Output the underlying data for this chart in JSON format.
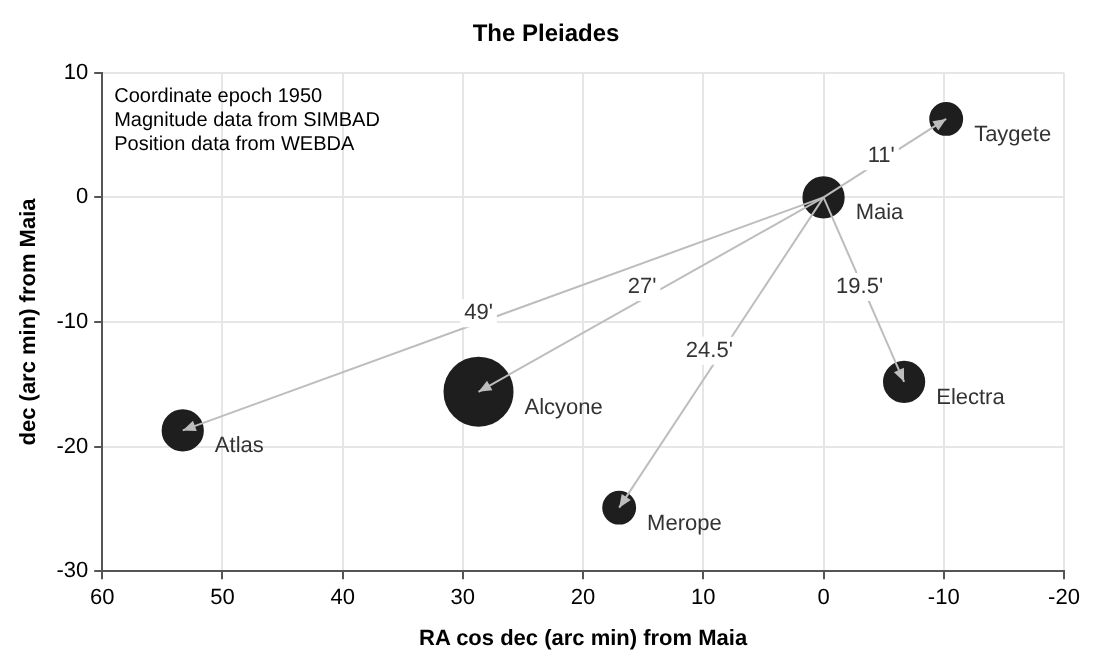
{
  "chart_data": {
    "type": "bubble",
    "title": "The Pleiades",
    "xlabel": "RA cos dec (arc min) from Maia",
    "ylabel": "dec (arc min) from Maia",
    "series": [
      {
        "name": "Maia",
        "color": "#1e1e1e",
        "x": [
          0
        ],
        "values": [
          0
        ],
        "sizes": [
          0.35
        ]
      },
      {
        "name": "Taygete",
        "color": "#1e1e1e",
        "x": [
          -10.2
        ],
        "values": [
          6.3
        ],
        "sizes": [
          0.22
        ]
      },
      {
        "name": "Alcyone",
        "color": "#1e1e1e",
        "x": [
          28.7
        ],
        "values": [
          -15.6
        ],
        "sizes": [
          1
        ]
      },
      {
        "name": "Atlas",
        "color": "#1e1e1e",
        "x": [
          53.3
        ],
        "values": [
          -18.7
        ],
        "sizes": [
          0.35
        ]
      },
      {
        "name": "Merope",
        "color": "#1e1e1e",
        "x": [
          17
        ],
        "values": [
          -24.9
        ],
        "sizes": [
          0.22
        ]
      },
      {
        "name": "Electra",
        "color": "#1e1e1e",
        "x": [
          -6.7
        ],
        "values": [
          -14.8
        ],
        "sizes": [
          0.35
        ]
      }
    ],
    "xlim": [
      60,
      -20
    ],
    "xticks": [
      60,
      50,
      40,
      30,
      20,
      10,
      0,
      -10,
      -20
    ],
    "ylim": [
      -30,
      10
    ],
    "yticks": [
      -30,
      -20,
      -10,
      0,
      10
    ],
    "grid": true,
    "legend": false,
    "annotations": [
      "Coordinate epoch 1950",
      "Magnitude data from SIMBAD",
      "Position data from WEBDA",
      {
        "text": "11'",
        "x": -4.8,
        "y": 3.3
      },
      {
        "text": "27'",
        "x": 15.1,
        "y": -7.2
      },
      {
        "text": "49'",
        "x": 28.7,
        "y": -9.3
      },
      {
        "text": "19.5'",
        "x": -3,
        "y": -7.2
      },
      {
        "text": "24.5'",
        "x": 9.5,
        "y": -12.3
      }
    ]
  }
}
